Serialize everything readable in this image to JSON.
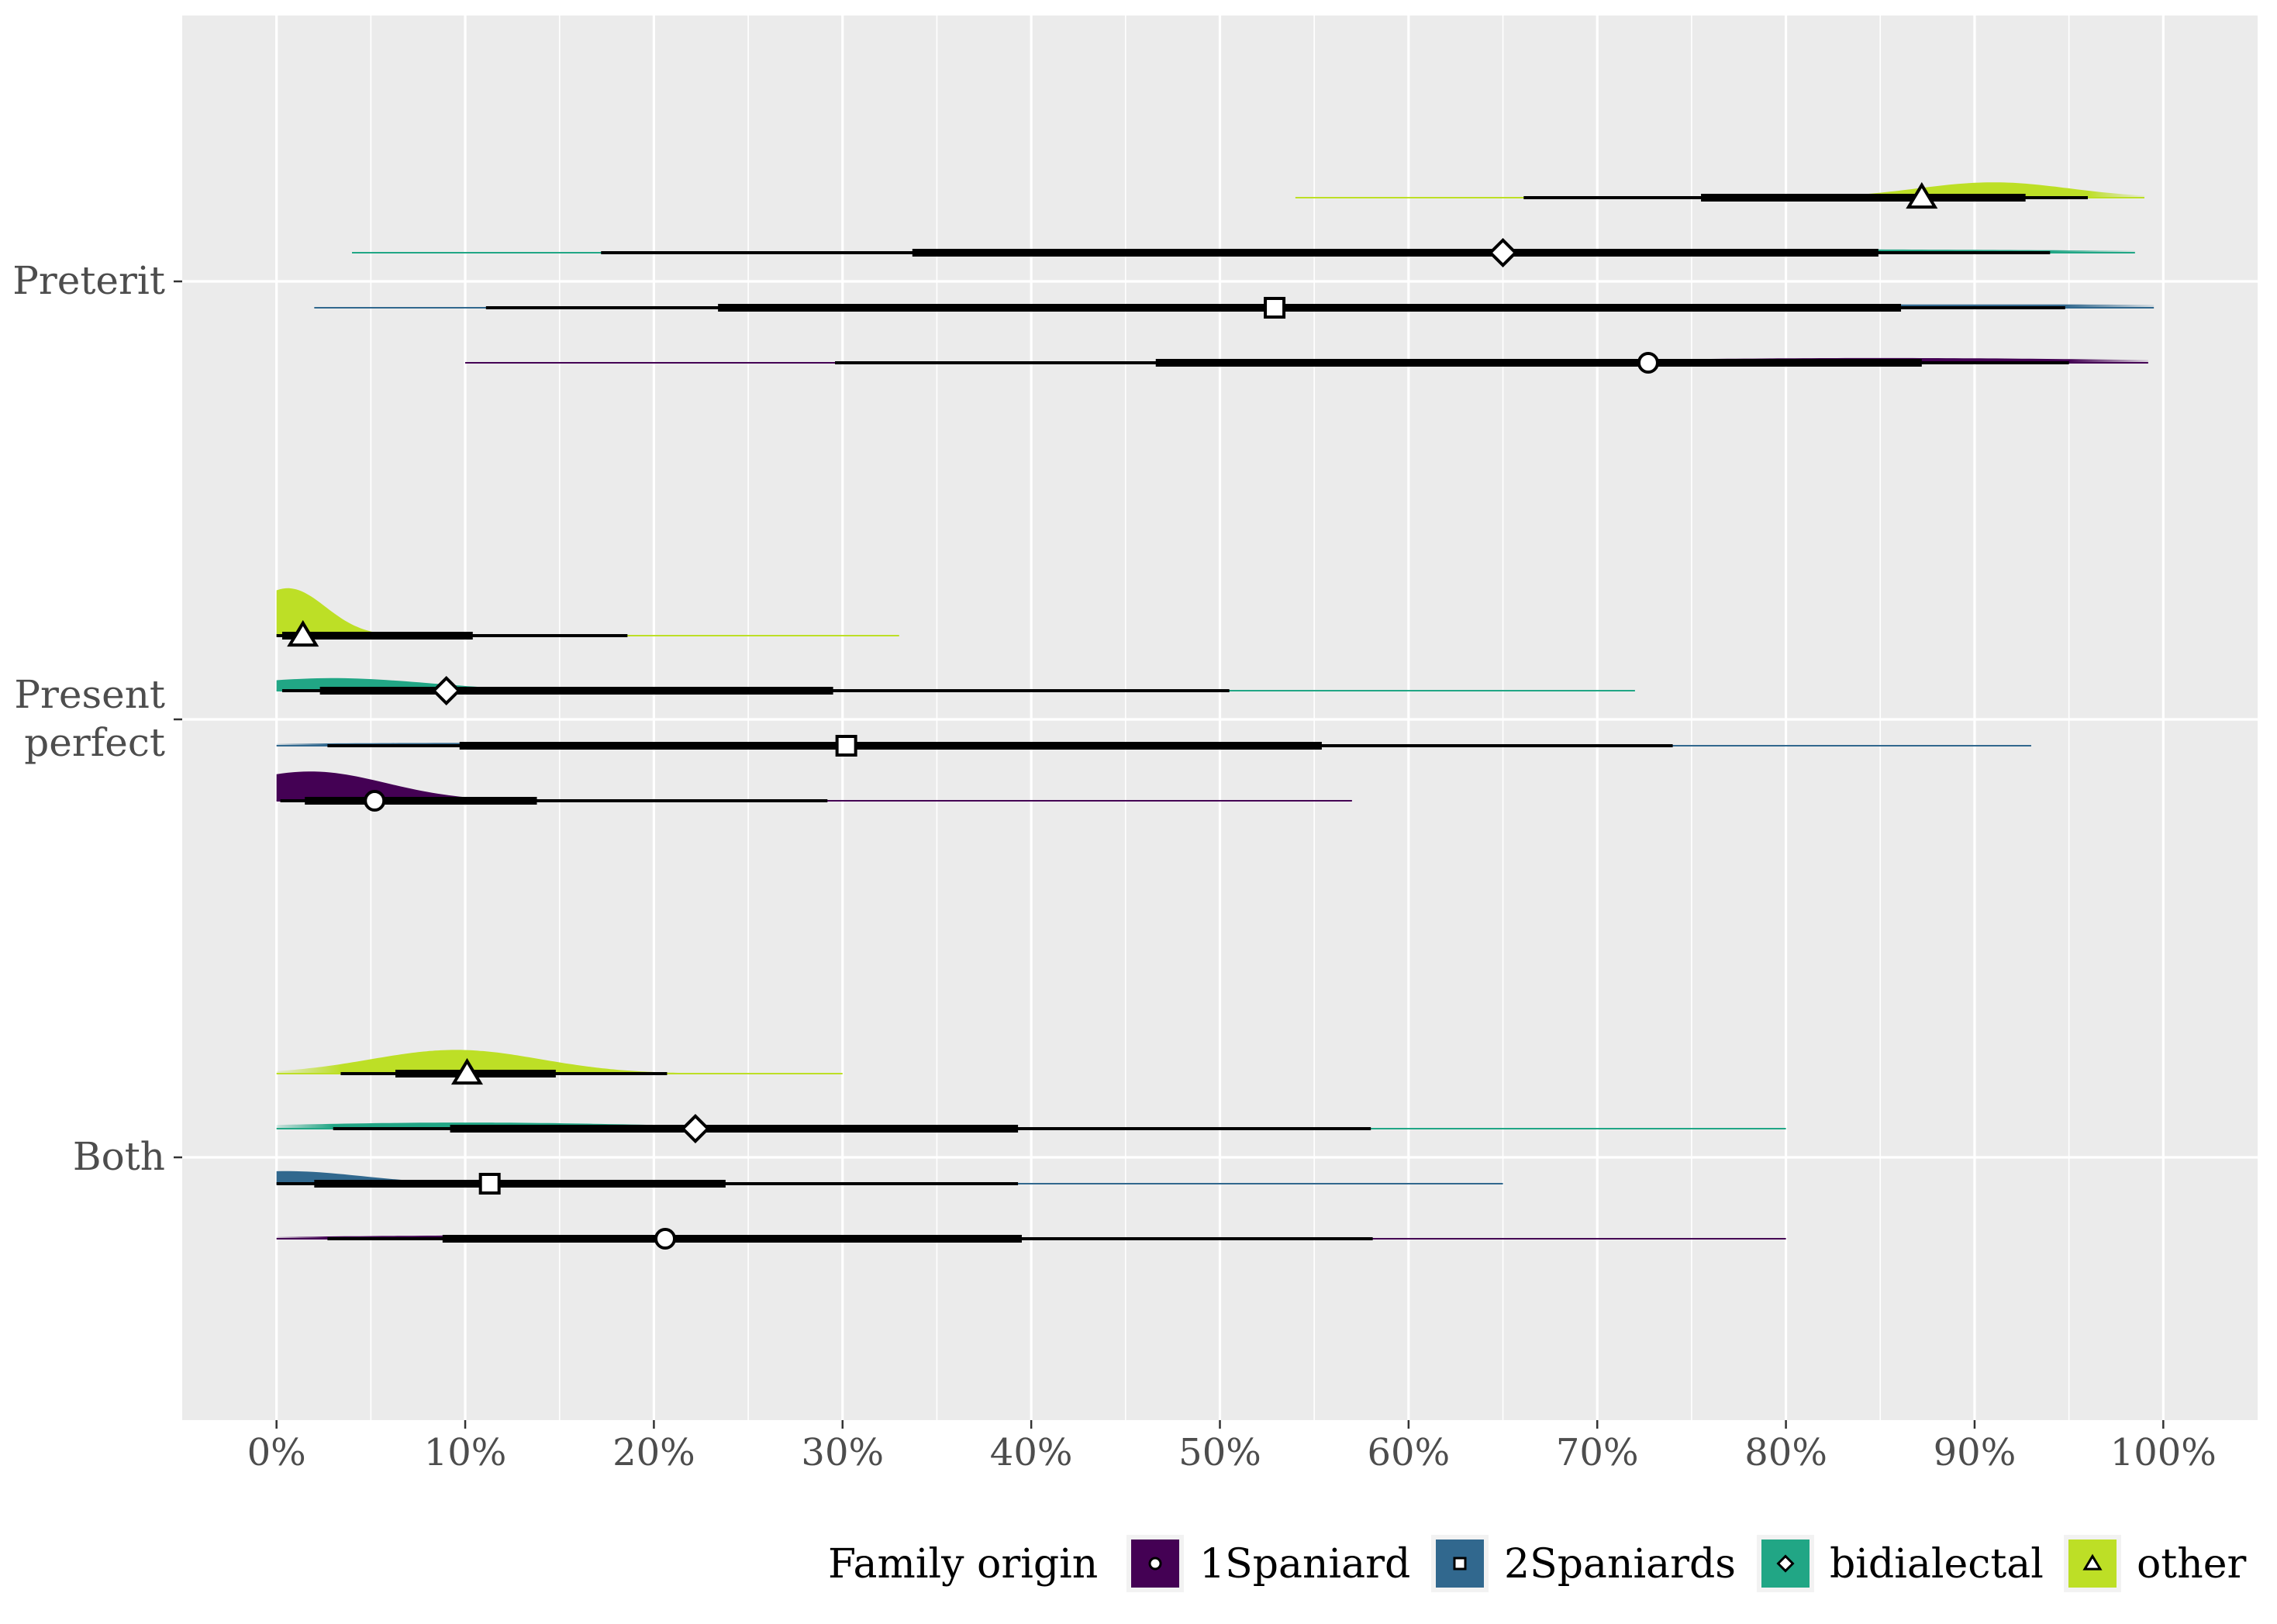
{
  "chart_data": {
    "type": "halfeye",
    "xlim": [
      -0.05,
      1.05
    ],
    "x_ticks": [
      0,
      0.1,
      0.2,
      0.3,
      0.4,
      0.5,
      0.6,
      0.7,
      0.8,
      0.9,
      1.0
    ],
    "x_tick_labels": [
      "0%",
      "10%",
      "20%",
      "30%",
      "40%",
      "50%",
      "60%",
      "70%",
      "80%",
      "90%",
      "100%"
    ],
    "categories": [
      {
        "label": "Preterit"
      },
      {
        "label_lines": [
          "Present",
          "perfect"
        ]
      },
      {
        "label": "Both"
      }
    ],
    "legend": {
      "title": "Family origin",
      "placement": "bottom",
      "items": [
        "1Spaniard",
        "2Spaniards",
        "bidialectal",
        "other"
      ]
    },
    "series_colors": {
      "1Spaniard": "#440154",
      "2Spaniards": "#31688e",
      "bidialectal": "#21a685",
      "other": "#bddf26"
    },
    "series_shapes": {
      "1Spaniard": "circle",
      "2Spaniards": "square",
      "bidialectal": "diamond",
      "other": "triangle"
    },
    "series": [
      {
        "name": "other",
        "category": "Preterit",
        "point": 0.872,
        "interval_66": [
          0.755,
          0.927
        ],
        "interval_95": [
          0.661,
          0.96
        ],
        "dens_range": [
          0.54,
          0.99
        ],
        "mode": 0.91,
        "peak": 0.55,
        "sd": 0.04
      },
      {
        "name": "bidialectal",
        "category": "Preterit",
        "point": 0.65,
        "interval_66": [
          0.337,
          0.849
        ],
        "interval_95": [
          0.172,
          0.94
        ],
        "dens_range": [
          0.04,
          0.985
        ],
        "mode": 0.8,
        "peak": 0.12,
        "sd": 0.18
      },
      {
        "name": "2Spaniards",
        "category": "Preterit",
        "point": 0.529,
        "interval_66": [
          0.234,
          0.861
        ],
        "interval_95": [
          0.111,
          0.948
        ],
        "dens_range": [
          0.02,
          0.995
        ],
        "mode": 0.9,
        "peak": 0.12,
        "sd": 0.2
      },
      {
        "name": "1Spaniard",
        "category": "Preterit",
        "point": 0.727,
        "interval_66": [
          0.466,
          0.872
        ],
        "interval_95": [
          0.296,
          0.95
        ],
        "dens_range": [
          0.1,
          0.992
        ],
        "mode": 0.85,
        "peak": 0.17,
        "sd": 0.14
      },
      {
        "name": "other",
        "category": "Present perfect",
        "point": 0.014,
        "interval_66": [
          0.003,
          0.104
        ],
        "interval_95": [
          0.0,
          0.186
        ],
        "dens_range": [
          0.0,
          0.33
        ],
        "mode": 0.006,
        "peak": 1.7,
        "sd": 0.02
      },
      {
        "name": "bidialectal",
        "category": "Present perfect",
        "point": 0.09,
        "interval_66": [
          0.023,
          0.295
        ],
        "interval_95": [
          0.003,
          0.505
        ],
        "dens_range": [
          0.0,
          0.72
        ],
        "mode": 0.03,
        "peak": 0.45,
        "sd": 0.05
      },
      {
        "name": "2Spaniards",
        "category": "Present perfect",
        "point": 0.302,
        "interval_66": [
          0.097,
          0.554
        ],
        "interval_95": [
          0.027,
          0.74
        ],
        "dens_range": [
          0.0,
          0.93
        ],
        "mode": 0.1,
        "peak": 0.1,
        "sd": 0.12
      },
      {
        "name": "1Spaniard",
        "category": "Present perfect",
        "point": 0.052,
        "interval_66": [
          0.015,
          0.138
        ],
        "interval_95": [
          0.002,
          0.292
        ],
        "dens_range": [
          0.0,
          0.57
        ],
        "mode": 0.018,
        "peak": 1.05,
        "sd": 0.04
      },
      {
        "name": "other",
        "category": "Both",
        "point": 0.101,
        "interval_66": [
          0.063,
          0.148
        ],
        "interval_95": [
          0.034,
          0.207
        ],
        "dens_range": [
          0.0,
          0.3
        ],
        "mode": 0.095,
        "peak": 0.85,
        "sd": 0.045
      },
      {
        "name": "bidialectal",
        "category": "Both",
        "point": 0.222,
        "interval_66": [
          0.092,
          0.393
        ],
        "interval_95": [
          0.03,
          0.58
        ],
        "dens_range": [
          0.0,
          0.8
        ],
        "mode": 0.1,
        "peak": 0.22,
        "sd": 0.1
      },
      {
        "name": "2Spaniards",
        "category": "Both",
        "point": 0.113,
        "interval_66": [
          0.02,
          0.238
        ],
        "interval_95": [
          0.0,
          0.393
        ],
        "dens_range": [
          0.0,
          0.65
        ],
        "mode": 0.005,
        "peak": 0.45,
        "sd": 0.04
      },
      {
        "name": "1Spaniard",
        "category": "Both",
        "point": 0.206,
        "interval_66": [
          0.088,
          0.395
        ],
        "interval_95": [
          0.027,
          0.581
        ],
        "dens_range": [
          0.0,
          0.8
        ],
        "mode": 0.13,
        "peak": 0.12,
        "sd": 0.12
      }
    ]
  }
}
